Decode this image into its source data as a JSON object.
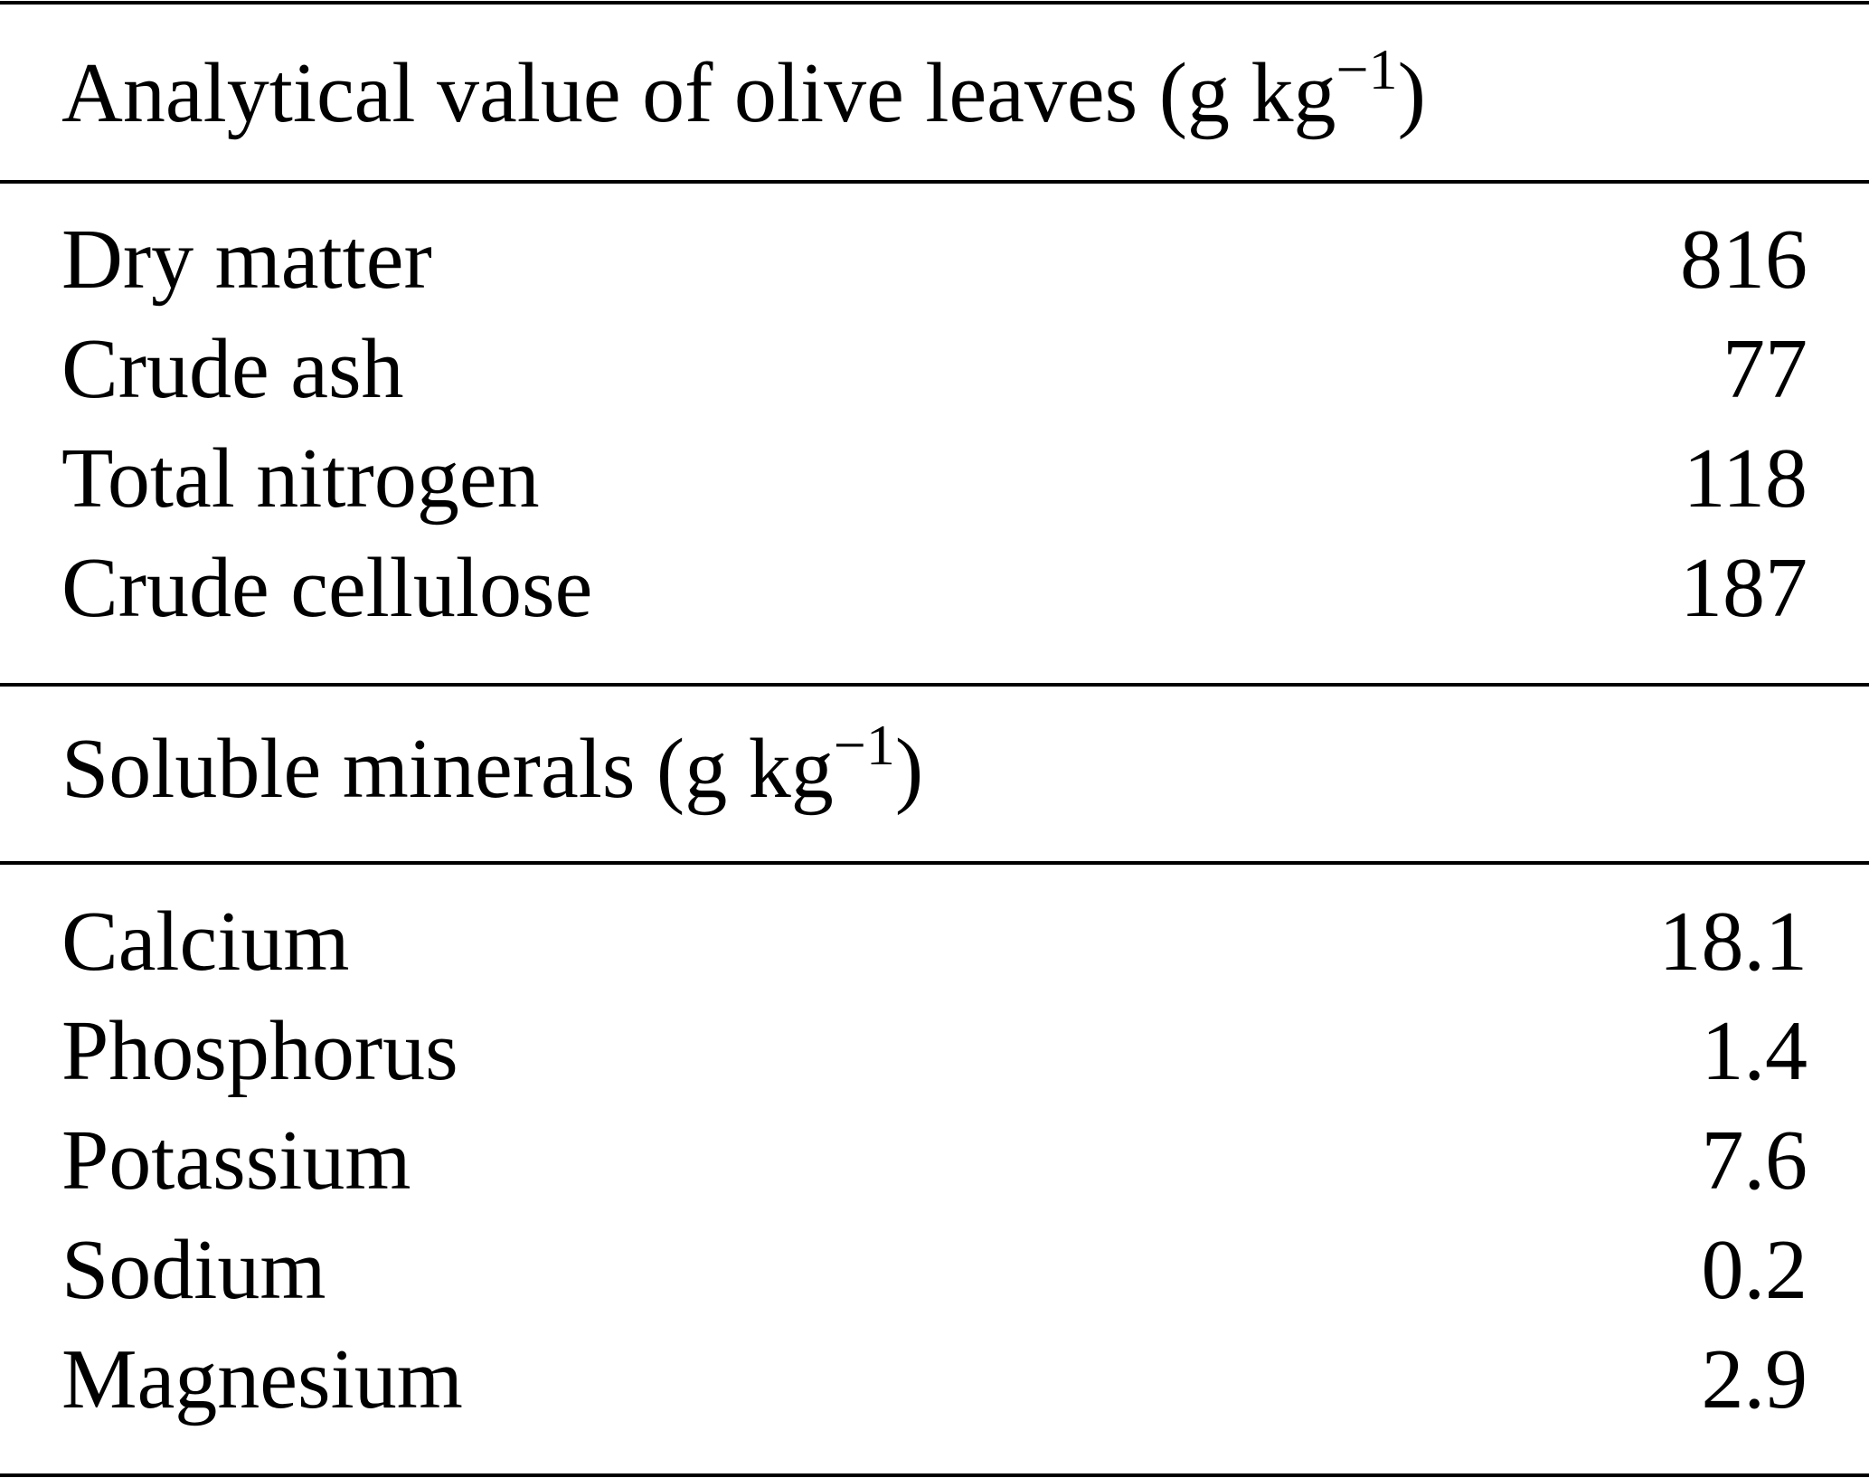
{
  "sections": [
    {
      "header": [
        "Analytical value of olive leaves (g kg",
        "−1",
        ")"
      ],
      "rows": [
        [
          "Dry matter",
          "816"
        ],
        [
          "Crude ash",
          "77"
        ],
        [
          "Total nitrogen",
          "118"
        ],
        [
          "Crude cellulose",
          "187"
        ]
      ]
    },
    {
      "header": [
        "Soluble minerals (g kg",
        "−1",
        ")"
      ],
      "rows": [
        [
          "Calcium",
          "18.1"
        ],
        [
          "Phosphorus",
          "1.4"
        ],
        [
          "Potassium",
          "7.6"
        ],
        [
          "Sodium",
          "0.2"
        ],
        [
          "Magnesium",
          "2.9"
        ]
      ]
    }
  ]
}
